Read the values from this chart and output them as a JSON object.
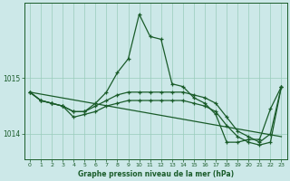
{
  "xlabel": "Graphe pression niveau de la mer (hPa)",
  "bg_color": "#cce8e8",
  "plot_bg_color": "#cce8e8",
  "grid_color": "#99ccbb",
  "line_color": "#1a5c2a",
  "yticks": [
    1014,
    1015
  ],
  "ylim": [
    1013.55,
    1016.35
  ],
  "xlim": [
    -0.5,
    23.5
  ],
  "xticks": [
    0,
    1,
    2,
    3,
    4,
    5,
    6,
    7,
    8,
    9,
    10,
    11,
    12,
    13,
    14,
    15,
    16,
    17,
    18,
    19,
    20,
    21,
    22,
    23
  ],
  "series_main": [
    1014.75,
    1014.6,
    1014.55,
    1014.5,
    1014.4,
    1014.4,
    1014.55,
    1014.75,
    1015.1,
    1015.35,
    1016.15,
    1015.75,
    1015.7,
    1014.9,
    1014.85,
    1014.65,
    1014.55,
    1014.35,
    1013.85,
    1013.85,
    1013.9,
    1013.9,
    1014.45,
    1014.85
  ],
  "series_flat": [
    1014.75,
    1014.6,
    1014.55,
    1014.5,
    1014.4,
    1014.4,
    1014.5,
    1014.6,
    1014.7,
    1014.75,
    1014.75,
    1014.75,
    1014.75,
    1014.75,
    1014.75,
    1014.7,
    1014.65,
    1014.55,
    1014.3,
    1014.05,
    1013.95,
    1013.85,
    1014.0,
    1014.85
  ],
  "series_low": [
    1014.75,
    1014.6,
    1014.55,
    1014.5,
    1014.3,
    1014.35,
    1014.4,
    1014.5,
    1014.55,
    1014.6,
    1014.6,
    1014.6,
    1014.6,
    1014.6,
    1014.6,
    1014.55,
    1014.5,
    1014.4,
    1014.15,
    1013.95,
    1013.85,
    1013.8,
    1013.85,
    1014.85
  ],
  "series_trend": [
    [
      0,
      1014.75
    ],
    [
      23,
      1013.95
    ]
  ]
}
